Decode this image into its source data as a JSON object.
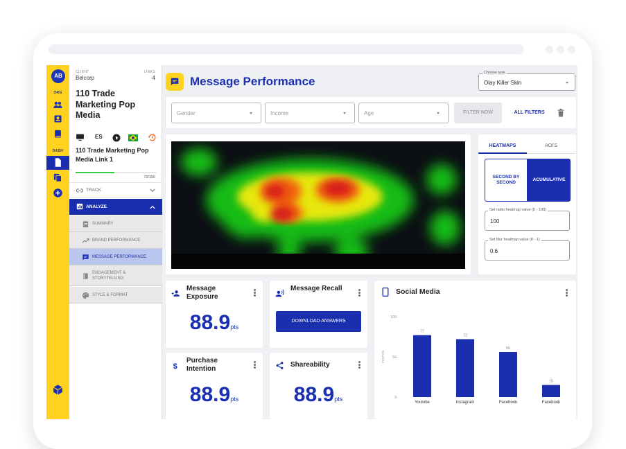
{
  "user": {
    "initials": "AB"
  },
  "rail": {
    "org_label": "ORG",
    "dash_label": "DASH"
  },
  "client": {
    "label": "CLIENT",
    "name": "Belcorp",
    "links_label": "LINKS",
    "links_count": "4"
  },
  "project": {
    "title": "110 Trade Marketing Pop Media",
    "language": "ES"
  },
  "link": {
    "name": "110 Trade Marketing Pop Media Link 1",
    "progress_text": "72/150",
    "progress_value": 72,
    "progress_max": 150
  },
  "nav": {
    "track_label": "TRACK",
    "analyze_label": "ANALYZE",
    "sub_items": [
      {
        "label": "SUMMARY",
        "active": false
      },
      {
        "label": "BRAND PERFORMANCE",
        "active": false
      },
      {
        "label": "MESSAGE PERFORMANCE",
        "active": true
      },
      {
        "label": "ENGAGEMENT & STORYTELLING",
        "active": false
      },
      {
        "label": "STYLE & FORMAT",
        "active": false
      }
    ]
  },
  "header": {
    "title": "Message Performance"
  },
  "task": {
    "label": "Choose task",
    "value": "Olay Killer Skin"
  },
  "filters": {
    "gender": "Gender",
    "income": "Income",
    "age": "Age",
    "filter_now": "FILTER NOW",
    "all_filters": "ALL FILTERS"
  },
  "heatmap_panel": {
    "tab_heatmaps": "HEATMAPS",
    "tab_aois": "AOI'S",
    "mode_second": "SECOND BY SECOND",
    "mode_accumulative": "ACUMULATIVE",
    "radio_label": "Set radio heatmap value (0 - 100)",
    "radio_value": "100",
    "blur_label": "Set blur heatmap value (0 - 1)",
    "blur_value": "0.6"
  },
  "metrics": {
    "exposure": {
      "title": "Message Exposure",
      "value": "88.9",
      "unit": "pts"
    },
    "recall": {
      "title": "Message Recall",
      "button": "DOWNLOAD ANSWERS"
    },
    "purchase": {
      "title": "Purchase Intention",
      "value": "88.9",
      "unit": "pts"
    },
    "share": {
      "title": "Shareability",
      "value": "88.9",
      "unit": "pts"
    }
  },
  "social": {
    "title": "Social Media"
  },
  "chart_data": {
    "type": "bar",
    "categories": [
      "Youtube",
      "Instagram",
      "Facebook",
      "Facebook"
    ],
    "values": [
      77,
      72,
      56,
      15
    ],
    "ylabel": "PUNTOS",
    "yticks": [
      "100",
      "50",
      "0"
    ],
    "ylim": [
      0,
      100
    ],
    "bar_color": "#1a2fb0"
  },
  "colors": {
    "brand_blue": "#1a2fb0",
    "brand_yellow": "#ffd21f",
    "progress_green": "#2ecc40"
  }
}
